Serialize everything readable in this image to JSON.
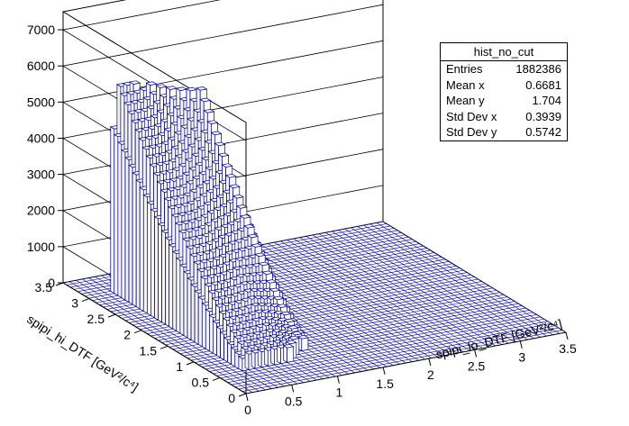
{
  "stats_box": {
    "title": "hist_no_cut",
    "rows": [
      {
        "label": "Entries",
        "value": "1882386"
      },
      {
        "label": "Mean x",
        "value": "0.6681"
      },
      {
        "label": "Mean y",
        "value": "1.704"
      },
      {
        "label": "Std Dev x",
        "value": "0.3939"
      },
      {
        "label": "Std Dev y",
        "value": "0.5742"
      }
    ]
  },
  "chart_data": {
    "type": "lego3d",
    "title": "",
    "xlabel": "spipi_lo_DTF [GeV²/c⁴]",
    "ylabel": "spipi_hi_DTF [GeV²/c⁴]",
    "zlabel": "",
    "xlim": [
      0,
      3.5
    ],
    "ylim": [
      0,
      3.5
    ],
    "zlim": [
      0,
      7500
    ],
    "x_ticks": [
      "0",
      "0.5",
      "1",
      "1.5",
      "2",
      "2.5",
      "3",
      "3.5"
    ],
    "y_ticks": [
      "0",
      "0.5",
      "1",
      "1.5",
      "2",
      "2.5",
      "3",
      "3.5"
    ],
    "z_ticks": [
      "0",
      "1000",
      "2000",
      "3000",
      "4000",
      "5000",
      "6000",
      "7000"
    ],
    "bins_x": 50,
    "bins_y": 50,
    "bar_fill": "#ffffff",
    "bar_edge": "#000080",
    "distribution": "Phase-space bounded (Dalitz-like) region: roughly 0.3<x<1.1, 0.5<y<3.0 with heights up to ~5700 near the high-y edge, falling to a few hundred near the lower boundary; empty elsewhere"
  }
}
